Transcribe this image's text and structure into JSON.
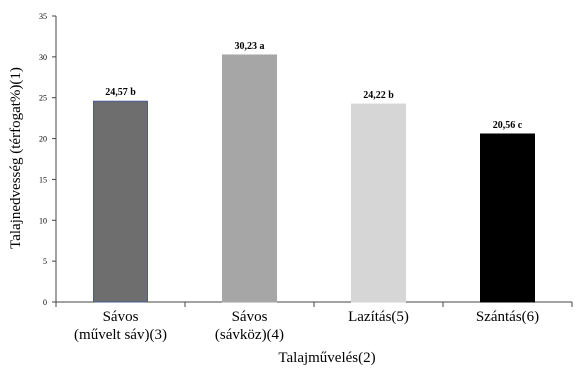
{
  "chart_data": {
    "type": "bar",
    "categories": [
      [
        "Sávos",
        "(művelt sáv)(3)"
      ],
      [
        "Sávos",
        "(sávköz)(4)"
      ],
      [
        "Lazítás(5)"
      ],
      [
        "Szántás(6)"
      ]
    ],
    "values": [
      24.57,
      30.23,
      24.22,
      20.56
    ],
    "data_labels": [
      "24,57 b",
      "30,23 a",
      "24,22 b",
      "20,56 c"
    ],
    "colors": [
      "#6e6e6e",
      "#a6a6a6",
      "#d6d6d6",
      "#000000"
    ],
    "edge_colors": [
      "#4a5a9a",
      "#a6a6a6",
      "#d6d6d6",
      "#000000"
    ],
    "xlabel": "Talajművelés(2)",
    "ylabel": "Talajnedvesség (térfogat%)(1)",
    "ylim": [
      0,
      35
    ],
    "yticks": [
      0,
      5,
      10,
      15,
      20,
      25,
      30,
      35
    ],
    "grid": false,
    "legend": "none"
  }
}
